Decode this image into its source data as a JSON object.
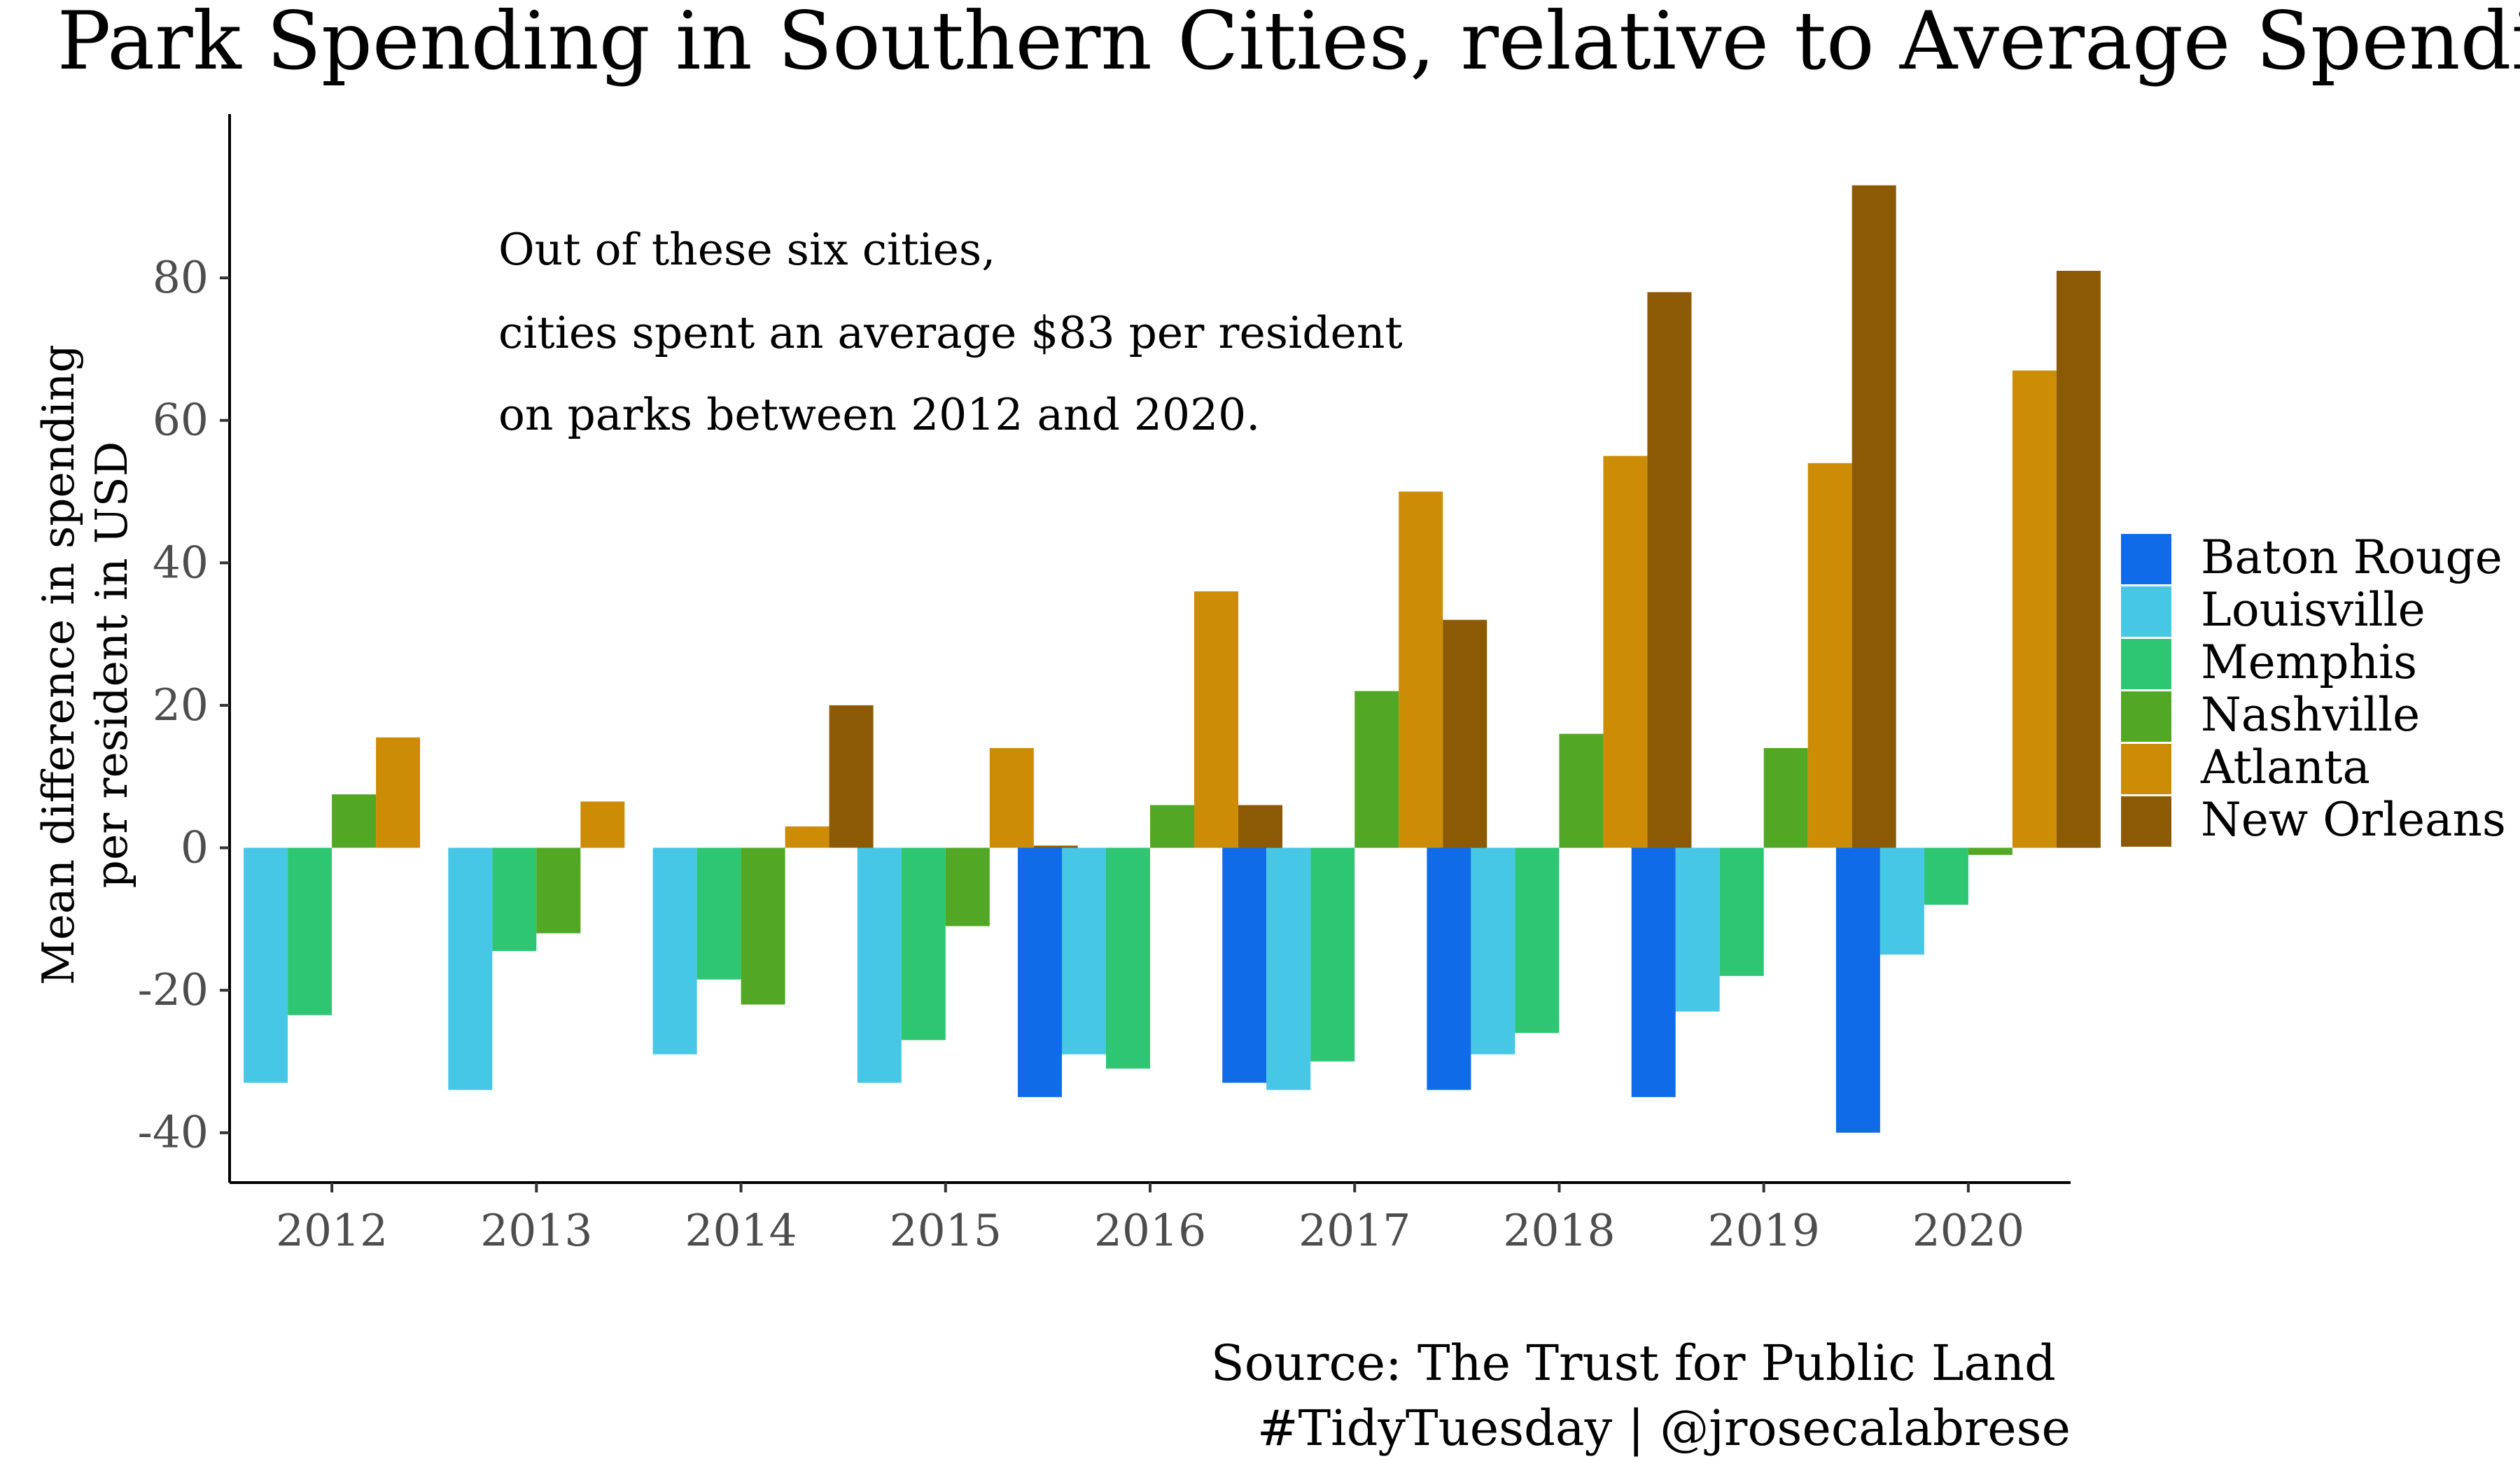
{
  "chart_data": {
    "type": "bar",
    "title": "Park Spending in Southern Cities, relative to Average Spending",
    "ylabel": [
      "Mean difference in spending",
      "per resident in USD"
    ],
    "xlabel": "",
    "categories": [
      "2012",
      "2013",
      "2014",
      "2015",
      "2016",
      "2017",
      "2018",
      "2019",
      "2020"
    ],
    "ylim": [
      -47,
      103
    ],
    "y_ticks": [
      -40,
      -20,
      0,
      20,
      40,
      60,
      80
    ],
    "y_tick_labels": [
      "-40",
      "-20",
      "0",
      "20",
      "40",
      "60",
      "80"
    ],
    "grid": false,
    "legend_position": "right",
    "series": [
      {
        "name": "Baton Rouge",
        "color": "#0f6be8",
        "values": [
          null,
          null,
          null,
          null,
          -35,
          -33,
          -34,
          -35,
          -40
        ]
      },
      {
        "name": "Louisville",
        "color": "#47c7e6",
        "values": [
          -33,
          -34,
          -29,
          -33,
          -29,
          -34,
          -29,
          -23,
          -15
        ]
      },
      {
        "name": "Memphis",
        "color": "#2ec673",
        "values": [
          -23.5,
          -14.5,
          -18.5,
          -27,
          -31,
          -30,
          -26,
          -18,
          -8
        ]
      },
      {
        "name": "Nashville",
        "color": "#52a825",
        "values": [
          7.5,
          -12,
          -22,
          -11,
          6,
          22,
          16,
          14,
          -1
        ]
      },
      {
        "name": "Atlanta",
        "color": "#cc8c06",
        "values": [
          15.5,
          6.5,
          3,
          14,
          36,
          50,
          55,
          54,
          67
        ]
      },
      {
        "name": "New Orleans",
        "color": "#8c5a05",
        "values": [
          null,
          null,
          20,
          0.3,
          6,
          32,
          78,
          93,
          81
        ]
      }
    ],
    "annotation": [
      "Out of these six cities,",
      "cities spent an average $83 per resident",
      "on parks between 2012 and 2020."
    ],
    "caption": [
      "Source: The Trust for Public Land",
      "#TidyTuesday | @jrosecalabrese"
    ]
  }
}
